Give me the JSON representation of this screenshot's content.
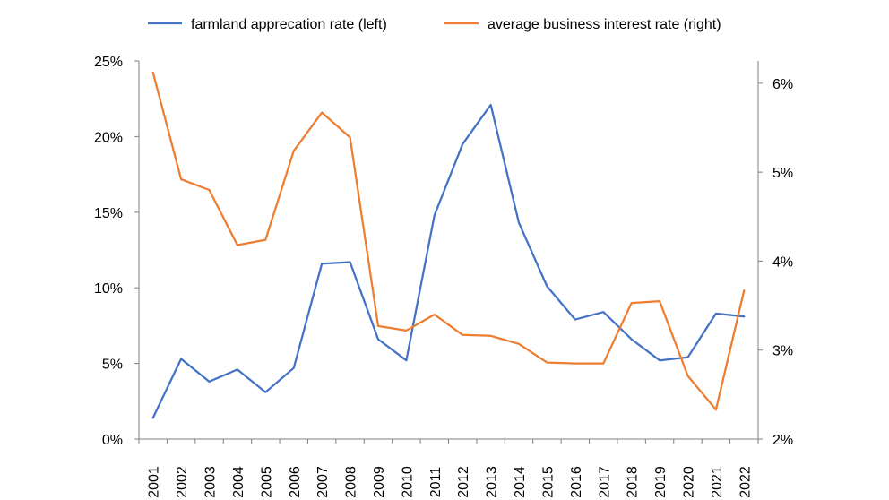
{
  "chart_data": {
    "type": "line",
    "title": "",
    "x": [
      "2001",
      "2002",
      "2003",
      "2004",
      "2005",
      "2006",
      "2007",
      "2008",
      "2009",
      "2010",
      "2011",
      "2012",
      "2013",
      "2014",
      "2015",
      "2016",
      "2017",
      "2018",
      "2019",
      "2020",
      "2021",
      "2022"
    ],
    "series": [
      {
        "name": "farmland apprecation rate (left)",
        "axis": "left",
        "color": "#4472C4",
        "values": [
          0.014,
          0.053,
          0.038,
          0.046,
          0.031,
          0.047,
          0.116,
          0.117,
          0.066,
          0.052,
          0.148,
          0.195,
          0.221,
          0.143,
          0.101,
          0.079,
          0.084,
          0.066,
          0.052,
          0.054,
          0.083,
          0.081
        ]
      },
      {
        "name": "average business interest rate (right)",
        "axis": "right",
        "color": "#ED7D31",
        "values": [
          6.12,
          4.92,
          4.8,
          4.18,
          4.24,
          5.24,
          5.67,
          5.39,
          3.27,
          3.22,
          3.4,
          3.17,
          3.16,
          3.07,
          2.86,
          2.85,
          2.85,
          3.53,
          3.55,
          2.71,
          2.33,
          3.67
        ]
      }
    ],
    "y_left": {
      "lim": [
        0,
        0.25
      ],
      "ticks": [
        0,
        0.05,
        0.1,
        0.15,
        0.2,
        0.25
      ],
      "tick_labels": [
        "0%",
        "5%",
        "10%",
        "15%",
        "20%",
        "25%"
      ]
    },
    "y_right": {
      "lim": [
        2,
        6.25
      ],
      "ticks": [
        2,
        3,
        4,
        5,
        6
      ],
      "tick_labels": [
        "2%",
        "3%",
        "4%",
        "5%",
        "6%"
      ]
    },
    "grid": false,
    "legend": "top",
    "axis_color": "#808080"
  }
}
